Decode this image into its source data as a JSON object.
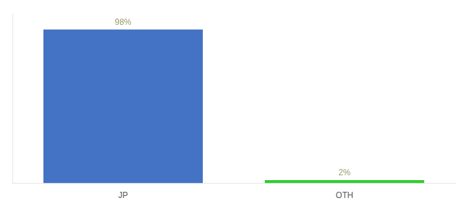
{
  "chart_data": {
    "type": "bar",
    "categories": [
      "JP",
      "OTH"
    ],
    "values": [
      98,
      2
    ],
    "value_labels": [
      "98%",
      "2%"
    ],
    "colors": [
      "#4472c4",
      "#33cc33"
    ],
    "ylim": [
      0,
      108
    ],
    "grid": false,
    "data_labels": true,
    "tick_labels": "x"
  }
}
